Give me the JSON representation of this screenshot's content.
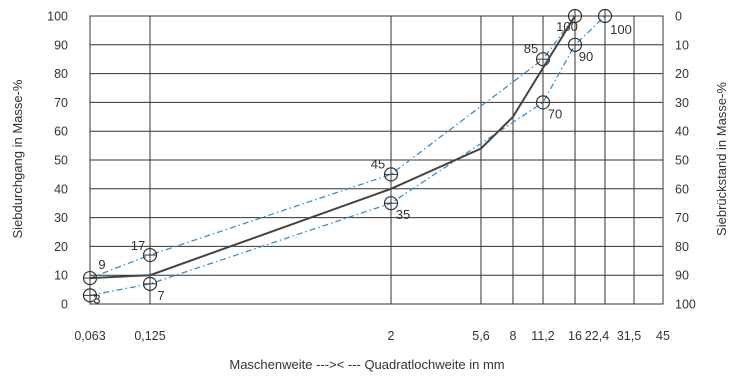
{
  "chart_data": {
    "type": "line",
    "xlabel": "Maschenweite --->< --- Quadratlochweite in mm",
    "ylabel_left": "Siebdurchgang in Masse-%",
    "ylabel_right": "Siebrückstand in Masse-%",
    "x_ticks": [
      "0,063",
      "0,125",
      "2",
      "5,6",
      "8",
      "11,2",
      "16",
      "22,4",
      "31,5",
      "45"
    ],
    "y_left_ticks": [
      "0",
      "10",
      "20",
      "30",
      "40",
      "50",
      "60",
      "70",
      "80",
      "90",
      "100"
    ],
    "y_right_ticks": [
      "100",
      "90",
      "80",
      "70",
      "60",
      "50",
      "40",
      "30",
      "20",
      "10",
      "0"
    ],
    "ylim": [
      0,
      100
    ],
    "series": [
      {
        "role": "upper-limit",
        "style": "dash-dot",
        "color": "#3a8fd0",
        "x": [
          "0,063",
          "0,125",
          "2",
          "11,2",
          "16"
        ],
        "values": [
          9,
          17,
          45,
          85,
          100
        ],
        "labels": [
          "9",
          "17",
          "45",
          "85",
          "100"
        ]
      },
      {
        "role": "lower-limit",
        "style": "dash-dot",
        "color": "#3a8fd0",
        "x": [
          "0,063",
          "0,125",
          "2",
          "11,2",
          "16",
          "22,4"
        ],
        "values": [
          3,
          7,
          35,
          70,
          90,
          100
        ],
        "labels": [
          "3",
          "7",
          "35",
          "70",
          "90",
          "100"
        ]
      },
      {
        "role": "grading-curve",
        "style": "solid",
        "color": "#444444",
        "x": [
          "0,063",
          "0,125",
          "2",
          "5,6",
          "8",
          "11,2",
          "16"
        ],
        "values": [
          9,
          10,
          40,
          54,
          65,
          82,
          100
        ]
      }
    ]
  }
}
